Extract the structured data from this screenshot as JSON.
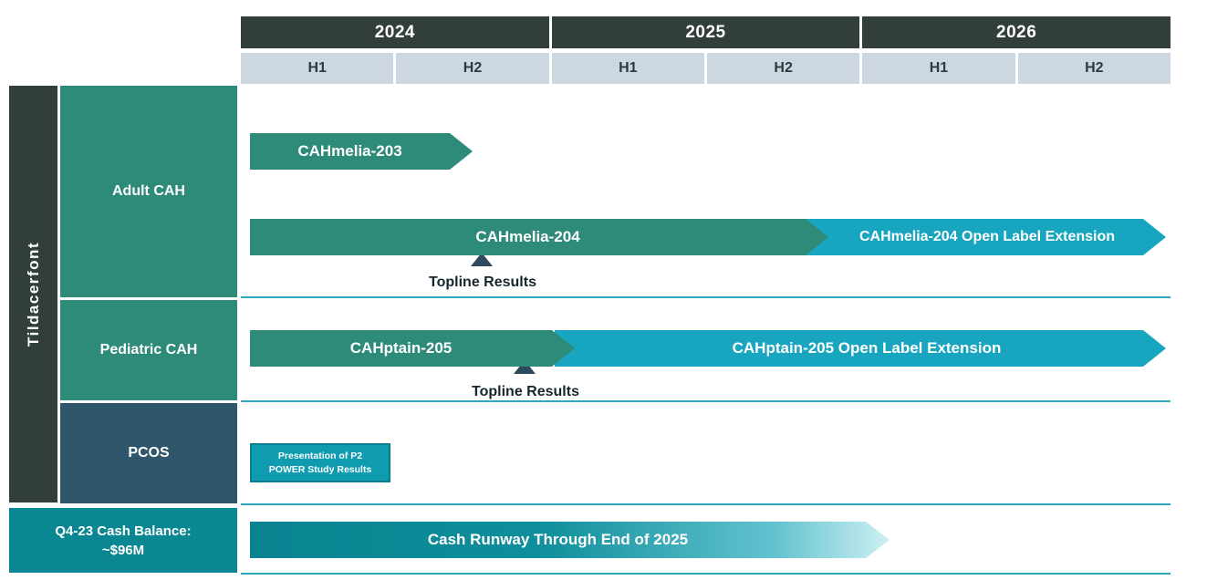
{
  "header": {
    "years": [
      {
        "label": "2024",
        "h1": "H1",
        "h2": "H2"
      },
      {
        "label": "2025",
        "h1": "H1",
        "h2": "H2"
      },
      {
        "label": "2026",
        "h1": "H1",
        "h2": "H2"
      }
    ]
  },
  "sidebar": {
    "program_label": "Tildacerfont",
    "row_adult": "Adult CAH",
    "row_pediatric": "Pediatric CAH",
    "row_pcos": "PCOS",
    "cash_balance_line1": "Q4-23 Cash Balance:",
    "cash_balance_line2": "~$96M"
  },
  "bars": {
    "cahmelia_203": "CAHmelia-203",
    "cahmelia_204": "CAHmelia-204",
    "cahmelia_204_ole": "CAHmelia-204 Open Label Extension",
    "cahptain_205": "CAHptain-205",
    "cahptain_205_ole": "CAHptain-205 Open Label Extension",
    "topline_adult": "Topline Results",
    "topline_pediatric": "Topline Results",
    "pcos_line1": "Presentation of  P2",
    "pcos_line2": "POWER Study Results",
    "cash_runway": "Cash Runway Through End of 2025"
  },
  "colors": {
    "header_dark": "#323e3c",
    "subheader_bg": "#ccd7e2",
    "teal": "#2e8b7a",
    "cyan": "#18a5c0",
    "slate": "#30566b",
    "cash_teal": "#0a8793",
    "separator_line": "#2fa6c0",
    "milestone_marker": "#2e4a5e"
  },
  "chart_data": {
    "type": "bar",
    "subtype": "gantt-timeline",
    "title": "Tildacerfont clinical program timeline",
    "time_axis": {
      "years": [
        2024,
        2025,
        2026
      ],
      "subdivisions": [
        "H1",
        "H2"
      ],
      "range": [
        2024.0,
        2027.0
      ]
    },
    "rows": [
      {
        "category": "Adult CAH",
        "bars": [
          {
            "label": "CAHmelia-203",
            "start": 2024.0,
            "end": 2024.75,
            "color_key": "teal"
          },
          {
            "label": "CAHmelia-204",
            "start": 2024.0,
            "end": 2025.9,
            "color_key": "teal"
          },
          {
            "label": "CAHmelia-204 Open Label Extension",
            "start": 2025.83,
            "end": 2027.0,
            "color_key": "cyan"
          }
        ],
        "milestones": [
          {
            "label": "Topline Results",
            "time": 2024.78,
            "attached_to": "CAHmelia-204"
          }
        ]
      },
      {
        "category": "Pediatric CAH",
        "bars": [
          {
            "label": "CAHptain-205",
            "start": 2024.0,
            "end": 2025.09,
            "color_key": "teal"
          },
          {
            "label": "CAHptain-205 Open Label Extension",
            "start": 2025.02,
            "end": 2027.0,
            "color_key": "cyan"
          }
        ],
        "milestones": [
          {
            "label": "Topline Results",
            "time": 2024.93,
            "attached_to": "CAHptain-205"
          }
        ]
      },
      {
        "category": "PCOS",
        "bars": [
          {
            "label": "Presentation of P2 POWER Study Results",
            "start": 2024.0,
            "end": 2024.45,
            "color_key": "teal-outlined-box"
          }
        ],
        "milestones": []
      },
      {
        "category": "Q4-23 Cash Balance: ~$96M",
        "bars": [
          {
            "label": "Cash Runway Through End of 2025",
            "start": 2024.0,
            "end": 2026.0,
            "color_key": "teal-gradient"
          }
        ],
        "milestones": []
      }
    ]
  }
}
